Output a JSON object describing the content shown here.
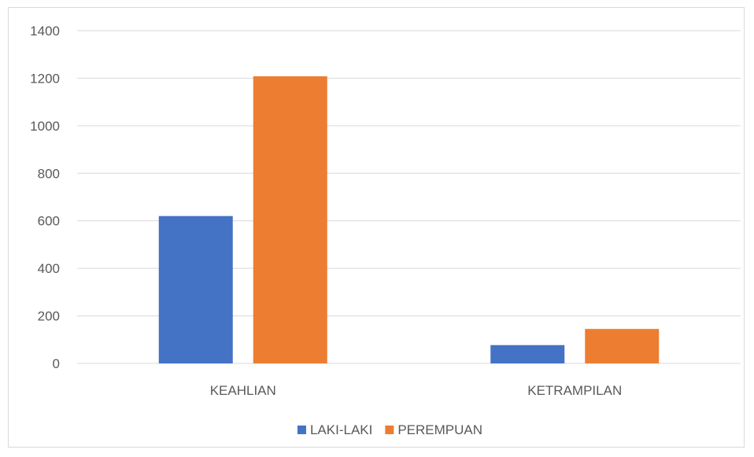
{
  "chart_data": {
    "type": "bar",
    "title": "",
    "xlabel": "",
    "ylabel": "",
    "categories": [
      "KEAHLIAN",
      "KETRAMPILAN"
    ],
    "series": [
      {
        "name": "LAKI-LAKI",
        "values": [
          620,
          77
        ],
        "color": "#4472C4"
      },
      {
        "name": "PEREMPUAN",
        "values": [
          1208,
          145
        ],
        "color": "#ED7D31"
      }
    ],
    "ylim": [
      0,
      1400
    ],
    "yticks": [
      0,
      200,
      400,
      600,
      800,
      1000,
      1200,
      1400
    ],
    "grid": true,
    "legend_position": "bottom"
  }
}
